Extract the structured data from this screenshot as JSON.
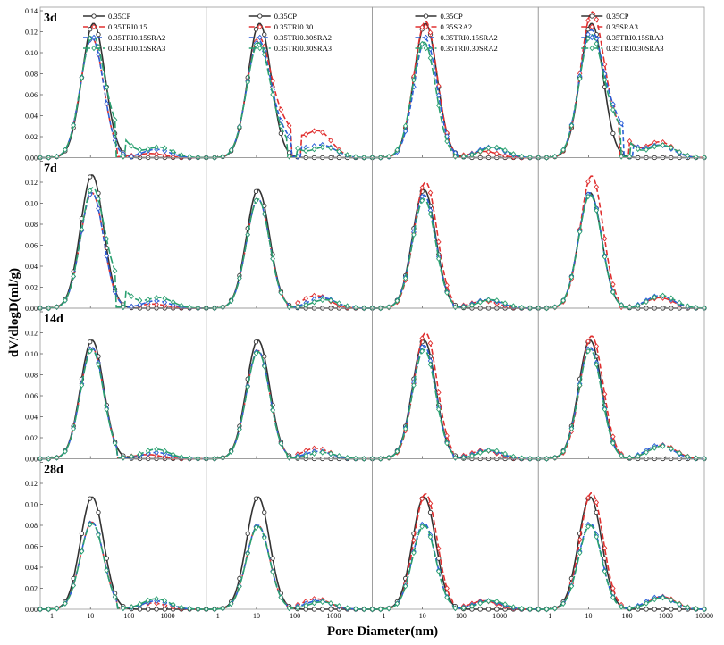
{
  "chart_data": {
    "type": "line",
    "xlabel": "Pore Diameter(nm)",
    "ylabel": "dV/dlogD(ml/g)",
    "x_scale": "log",
    "xlim": [
      0.5,
      10000
    ],
    "ylim": [
      0,
      0.14
    ],
    "x_ticks": [
      "1",
      "10",
      "100",
      "1000"
    ],
    "x_tick_values": [
      1,
      10,
      100,
      1000
    ],
    "x_last_tick": "10000",
    "y_ticks": [
      "0.00",
      "0.02",
      "0.04",
      "0.06",
      "0.08",
      "0.10",
      "0.12",
      "0.14"
    ],
    "y_tick_values": [
      0,
      0.02,
      0.04,
      0.06,
      0.08,
      0.1,
      0.12,
      0.14
    ],
    "rows": [
      "3d",
      "7d",
      "14d",
      "28d"
    ],
    "colors": {
      "black": "#333333",
      "red": "#e03030",
      "blue": "#2a5fd8",
      "green": "#2aa070"
    },
    "legends": [
      [
        "0.35CP",
        "0.35TRI0.15",
        "0.35TRI0.15SRA2",
        "0.35TRI0.15SRA3"
      ],
      [
        "0.35CP",
        "0.35TRI0.30",
        "0.35TRI0.30SRA2",
        "0.35TRI0.30SRA3"
      ],
      [
        "0.35CP",
        "0.35SRA2",
        "0.35TRI0.15SRA2",
        "0.35TRI0.30SRA2"
      ],
      [
        "0.35CP",
        "0.35SRA3",
        "0.35TRI0.15SRA3",
        "0.35TRI0.30SRA3"
      ]
    ],
    "panels": [
      [
        [
          {
            "peak": 0.128,
            "pd": 12
          },
          {
            "peak": 0.114,
            "pd": 11,
            "cut": 50,
            "p2": 0.004,
            "p2d": 350
          },
          {
            "peak": 0.114,
            "pd": 11,
            "cut": 80,
            "p2": 0.008,
            "p2d": 500
          },
          {
            "peak": 0.112,
            "pd": 11,
            "cut": 45,
            "p2": 0.01,
            "p2d": 600,
            "tail": 0.02
          }
        ],
        [
          {
            "peak": 0.128,
            "pd": 12
          },
          {
            "peak": 0.107,
            "pd": 11,
            "cut": 80,
            "p2": 0.025,
            "p2d": 400,
            "tail": 0.03
          },
          {
            "peak": 0.107,
            "pd": 11,
            "cut": 80,
            "p2": 0.012,
            "p2d": 500,
            "tail": 0.02
          },
          {
            "peak": 0.106,
            "pd": 11,
            "cut": 60,
            "p2": 0.01,
            "p2d": 600,
            "tail": 0.015
          }
        ],
        [
          {
            "peak": 0.128,
            "pd": 12
          },
          {
            "peak": 0.13,
            "pd": 12,
            "cut": 60,
            "p2": 0.006,
            "p2d": 400
          },
          {
            "peak": 0.113,
            "pd": 12,
            "cut": 80,
            "p2": 0.01,
            "p2d": 600
          },
          {
            "peak": 0.11,
            "pd": 11,
            "cut": 70,
            "p2": 0.01,
            "p2d": 700
          }
        ],
        [
          {
            "peak": 0.128,
            "pd": 12
          },
          {
            "peak": 0.133,
            "pd": 12,
            "cut": 60,
            "p2": 0.015,
            "p2d": 700,
            "tail": 0.025
          },
          {
            "peak": 0.113,
            "pd": 11,
            "cut": 80,
            "p2": 0.012,
            "p2d": 700,
            "tail": 0.035
          },
          {
            "peak": 0.11,
            "pd": 11,
            "cut": 70,
            "p2": 0.012,
            "p2d": 800,
            "tail": 0.03
          }
        ]
      ],
      [
        [
          {
            "peak": 0.127,
            "pd": 11
          },
          {
            "peak": 0.11,
            "pd": 11,
            "cut": 60,
            "p2": 0.004,
            "p2d": 400
          },
          {
            "peak": 0.11,
            "pd": 11,
            "cut": 60,
            "p2": 0.007,
            "p2d": 500
          },
          {
            "peak": 0.11,
            "pd": 11,
            "cut": 45,
            "p2": 0.01,
            "p2d": 600,
            "tail": 0.02
          }
        ],
        [
          {
            "peak": 0.113,
            "pd": 11
          },
          {
            "peak": 0.104,
            "pd": 11,
            "cut": 60,
            "p2": 0.012,
            "p2d": 350
          },
          {
            "peak": 0.104,
            "pd": 11,
            "cut": 70,
            "p2": 0.01,
            "p2d": 500
          },
          {
            "peak": 0.104,
            "pd": 11,
            "cut": 60,
            "p2": 0.008,
            "p2d": 600
          }
        ],
        [
          {
            "peak": 0.113,
            "pd": 11
          },
          {
            "peak": 0.12,
            "pd": 12,
            "cut": 60,
            "p2": 0.007,
            "p2d": 400
          },
          {
            "peak": 0.108,
            "pd": 11,
            "cut": 60,
            "p2": 0.008,
            "p2d": 500
          },
          {
            "peak": 0.104,
            "pd": 11,
            "cut": 60,
            "p2": 0.008,
            "p2d": 600
          }
        ],
        [
          {
            "peak": 0.11,
            "pd": 11
          },
          {
            "peak": 0.126,
            "pd": 12,
            "cut": 60,
            "p2": 0.01,
            "p2d": 700
          },
          {
            "peak": 0.11,
            "pd": 11,
            "cut": 80,
            "p2": 0.012,
            "p2d": 700
          },
          {
            "peak": 0.108,
            "pd": 11,
            "cut": 80,
            "p2": 0.012,
            "p2d": 800
          }
        ]
      ],
      [
        [
          {
            "peak": 0.113,
            "pd": 11
          },
          {
            "peak": 0.106,
            "pd": 11,
            "cut": 50,
            "p2": 0.004,
            "p2d": 300
          },
          {
            "peak": 0.106,
            "pd": 11,
            "cut": 50,
            "p2": 0.006,
            "p2d": 500
          },
          {
            "peak": 0.104,
            "pd": 11,
            "cut": 50,
            "p2": 0.009,
            "p2d": 500
          }
        ],
        [
          {
            "peak": 0.113,
            "pd": 11
          },
          {
            "peak": 0.103,
            "pd": 11,
            "cut": 60,
            "p2": 0.01,
            "p2d": 350
          },
          {
            "peak": 0.103,
            "pd": 11,
            "cut": 60,
            "p2": 0.007,
            "p2d": 400
          },
          {
            "peak": 0.102,
            "pd": 11,
            "cut": 60,
            "p2": 0.006,
            "p2d": 500
          }
        ],
        [
          {
            "peak": 0.113,
            "pd": 11
          },
          {
            "peak": 0.12,
            "pd": 12,
            "cut": 60,
            "p2": 0.008,
            "p2d": 400
          },
          {
            "peak": 0.108,
            "pd": 11,
            "cut": 60,
            "p2": 0.008,
            "p2d": 500
          },
          {
            "peak": 0.104,
            "pd": 11,
            "cut": 60,
            "p2": 0.008,
            "p2d": 600
          }
        ],
        [
          {
            "peak": 0.113,
            "pd": 11
          },
          {
            "peak": 0.117,
            "pd": 12,
            "cut": 80,
            "p2": 0.013,
            "p2d": 800
          },
          {
            "peak": 0.106,
            "pd": 11,
            "cut": 80,
            "p2": 0.013,
            "p2d": 700
          },
          {
            "peak": 0.104,
            "pd": 11,
            "cut": 80,
            "p2": 0.012,
            "p2d": 800
          }
        ]
      ],
      [
        [
          {
            "peak": 0.107,
            "pd": 11
          },
          {
            "peak": 0.083,
            "pd": 11,
            "cut": 50,
            "p2": 0.006,
            "p2d": 400
          },
          {
            "peak": 0.083,
            "pd": 11,
            "cut": 50,
            "p2": 0.008,
            "p2d": 500
          },
          {
            "peak": 0.082,
            "pd": 11,
            "cut": 50,
            "p2": 0.01,
            "p2d": 500
          }
        ],
        [
          {
            "peak": 0.107,
            "pd": 11
          },
          {
            "peak": 0.08,
            "pd": 11,
            "cut": 60,
            "p2": 0.01,
            "p2d": 350
          },
          {
            "peak": 0.08,
            "pd": 11,
            "cut": 60,
            "p2": 0.008,
            "p2d": 400
          },
          {
            "peak": 0.079,
            "pd": 11,
            "cut": 60,
            "p2": 0.007,
            "p2d": 500
          }
        ],
        [
          {
            "peak": 0.107,
            "pd": 11
          },
          {
            "peak": 0.11,
            "pd": 12,
            "cut": 60,
            "p2": 0.008,
            "p2d": 400
          },
          {
            "peak": 0.082,
            "pd": 11,
            "cut": 60,
            "p2": 0.008,
            "p2d": 500
          },
          {
            "peak": 0.08,
            "pd": 11,
            "cut": 60,
            "p2": 0.008,
            "p2d": 600
          }
        ],
        [
          {
            "peak": 0.107,
            "pd": 11
          },
          {
            "peak": 0.111,
            "pd": 12,
            "cut": 80,
            "p2": 0.012,
            "p2d": 800
          },
          {
            "peak": 0.082,
            "pd": 11,
            "cut": 80,
            "p2": 0.012,
            "p2d": 700
          },
          {
            "peak": 0.08,
            "pd": 11,
            "cut": 80,
            "p2": 0.011,
            "p2d": 800
          }
        ]
      ]
    ]
  }
}
